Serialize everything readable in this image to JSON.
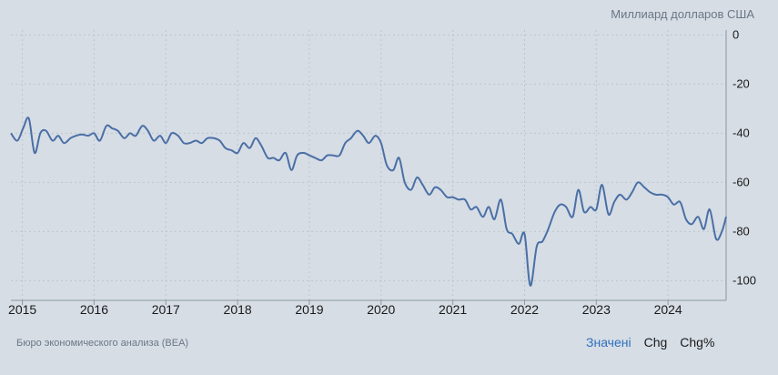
{
  "unit_label": "Миллиард долларов США",
  "source": "Бюро экономического анализа (BEA)",
  "tabs": [
    "Значені",
    "Chg",
    "Chg%"
  ],
  "colors": {
    "line": "#4a6fa5",
    "background": "#d6dde5",
    "grid": "#bcc6d0",
    "active_tab": "#2f6fbd"
  },
  "chart_data": {
    "type": "line",
    "title": "",
    "xlabel": "",
    "ylabel": "Миллиард долларов США",
    "y_ticks": [
      0,
      -20,
      -40,
      -60,
      -80,
      -100
    ],
    "ylim": [
      -108,
      2
    ],
    "x_ticks": [
      "2015",
      "2016",
      "2017",
      "2018",
      "2019",
      "2020",
      "2021",
      "2022",
      "2023",
      "2024"
    ],
    "xlim": [
      2014.84,
      2024.81
    ],
    "grid": true,
    "legend": "none",
    "series": [
      {
        "x": [
          2014.84,
          2014.93,
          2015.01,
          2015.09,
          2015.17,
          2015.25,
          2015.33,
          2015.42,
          2015.5,
          2015.58,
          2015.67,
          2015.75,
          2015.83,
          2015.92,
          2016.0,
          2016.08,
          2016.17,
          2016.25,
          2016.33,
          2016.42,
          2016.5,
          2016.58,
          2016.67,
          2016.75,
          2016.83,
          2016.92,
          2017.0,
          2017.08,
          2017.17,
          2017.25,
          2017.33,
          2017.42,
          2017.5,
          2017.58,
          2017.67,
          2017.75,
          2017.83,
          2017.92,
          2018.0,
          2018.08,
          2018.17,
          2018.25,
          2018.33,
          2018.42,
          2018.5,
          2018.58,
          2018.67,
          2018.75,
          2018.83,
          2018.92,
          2019.0,
          2019.08,
          2019.17,
          2019.25,
          2019.33,
          2019.42,
          2019.5,
          2019.58,
          2019.67,
          2019.75,
          2019.83,
          2019.92,
          2020.0,
          2020.08,
          2020.17,
          2020.25,
          2020.33,
          2020.42,
          2020.5,
          2020.58,
          2020.67,
          2020.75,
          2020.83,
          2020.92,
          2021.0,
          2021.08,
          2021.17,
          2021.25,
          2021.33,
          2021.42,
          2021.5,
          2021.58,
          2021.67,
          2021.75,
          2021.83,
          2021.92,
          2022.0,
          2022.08,
          2022.17,
          2022.25,
          2022.33,
          2022.42,
          2022.5,
          2022.58,
          2022.67,
          2022.75,
          2022.83,
          2022.92,
          2023.0,
          2023.08,
          2023.17,
          2023.25,
          2023.33,
          2023.42,
          2023.5,
          2023.58,
          2023.67,
          2023.75,
          2023.83,
          2023.92,
          2024.0,
          2024.08,
          2024.17,
          2024.25,
          2024.33,
          2024.42,
          2024.5,
          2024.58,
          2024.67,
          2024.75,
          2024.81
        ],
        "y": [
          -40,
          -43,
          -38,
          -34,
          -48,
          -40,
          -39,
          -43,
          -41,
          -44,
          -42,
          -41,
          -40.5,
          -41,
          -40,
          -43,
          -37,
          -38,
          -39,
          -42,
          -40,
          -41,
          -37,
          -39,
          -43,
          -41,
          -44,
          -40,
          -41,
          -44,
          -44,
          -43,
          -44,
          -42,
          -42,
          -43,
          -46,
          -47,
          -48,
          -44,
          -46,
          -42,
          -45,
          -50,
          -50,
          -51,
          -48,
          -55,
          -49,
          -48,
          -49,
          -50,
          -51,
          -49,
          -49,
          -49,
          -44,
          -42,
          -39,
          -41,
          -44,
          -41,
          -44,
          -53,
          -55,
          -50,
          -60,
          -63,
          -58,
          -61,
          -65,
          -62,
          -63,
          -66,
          -66,
          -67,
          -67,
          -71,
          -70,
          -74,
          -70,
          -75,
          -67,
          -79,
          -81,
          -85,
          -81,
          -102,
          -86,
          -84,
          -79,
          -72,
          -69,
          -70,
          -74,
          -63,
          -72,
          -70,
          -71,
          -61,
          -73,
          -68,
          -65,
          -67,
          -64,
          -60,
          -62,
          -64,
          -65,
          -65,
          -66,
          -69,
          -68,
          -75,
          -77,
          -74,
          -79,
          -71,
          -83,
          -80,
          -74
        ]
      }
    ]
  }
}
